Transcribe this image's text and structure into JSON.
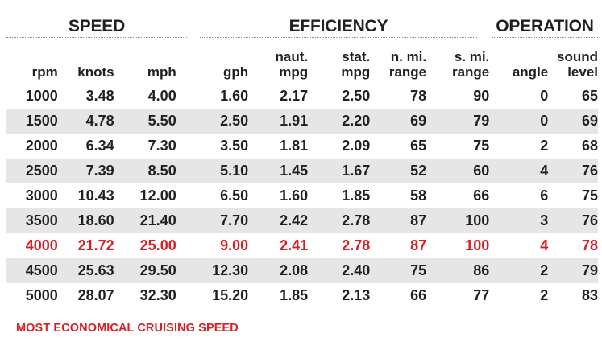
{
  "groups": {
    "speed": "SPEED",
    "efficiency": "EFFICIENCY",
    "operation": "OPERATION"
  },
  "columns": [
    {
      "line1": "",
      "line2": "rpm"
    },
    {
      "line1": "",
      "line2": "knots"
    },
    {
      "line1": "",
      "line2": "mph"
    },
    {
      "line1": "",
      "line2": "gph"
    },
    {
      "line1": "naut.",
      "line2": "mpg"
    },
    {
      "line1": "stat.",
      "line2": "mpg"
    },
    {
      "line1": "n. mi.",
      "line2": "range"
    },
    {
      "line1": "s. mi.",
      "line2": "range"
    },
    {
      "line1": "",
      "line2": "angle"
    },
    {
      "line1": "sound",
      "line2": "level"
    }
  ],
  "rows": [
    [
      "1000",
      "3.48",
      "4.00",
      "1.60",
      "2.17",
      "2.50",
      "78",
      "90",
      "0",
      "65"
    ],
    [
      "1500",
      "4.78",
      "5.50",
      "2.50",
      "1.91",
      "2.20",
      "69",
      "79",
      "0",
      "69"
    ],
    [
      "2000",
      "6.34",
      "7.30",
      "3.50",
      "1.81",
      "2.09",
      "65",
      "75",
      "2",
      "68"
    ],
    [
      "2500",
      "7.39",
      "8.50",
      "5.10",
      "1.45",
      "1.67",
      "52",
      "60",
      "4",
      "76"
    ],
    [
      "3000",
      "10.43",
      "12.00",
      "6.50",
      "1.60",
      "1.85",
      "58",
      "66",
      "6",
      "75"
    ],
    [
      "3500",
      "18.60",
      "21.40",
      "7.70",
      "2.42",
      "2.78",
      "87",
      "100",
      "3",
      "76"
    ],
    [
      "4000",
      "21.72",
      "25.00",
      "9.00",
      "2.41",
      "2.78",
      "87",
      "100",
      "4",
      "78"
    ],
    [
      "4500",
      "25.63",
      "29.50",
      "12.30",
      "2.08",
      "2.40",
      "75",
      "86",
      "2",
      "79"
    ],
    [
      "5000",
      "28.07",
      "32.30",
      "15.20",
      "1.85",
      "2.13",
      "66",
      "77",
      "2",
      "83"
    ]
  ],
  "highlight_row_index": 6,
  "highlight_color": "#d71f26",
  "stripe_color": "#e6e6e6",
  "footnote": "MOST ECONOMICAL CRUISING SPEED"
}
